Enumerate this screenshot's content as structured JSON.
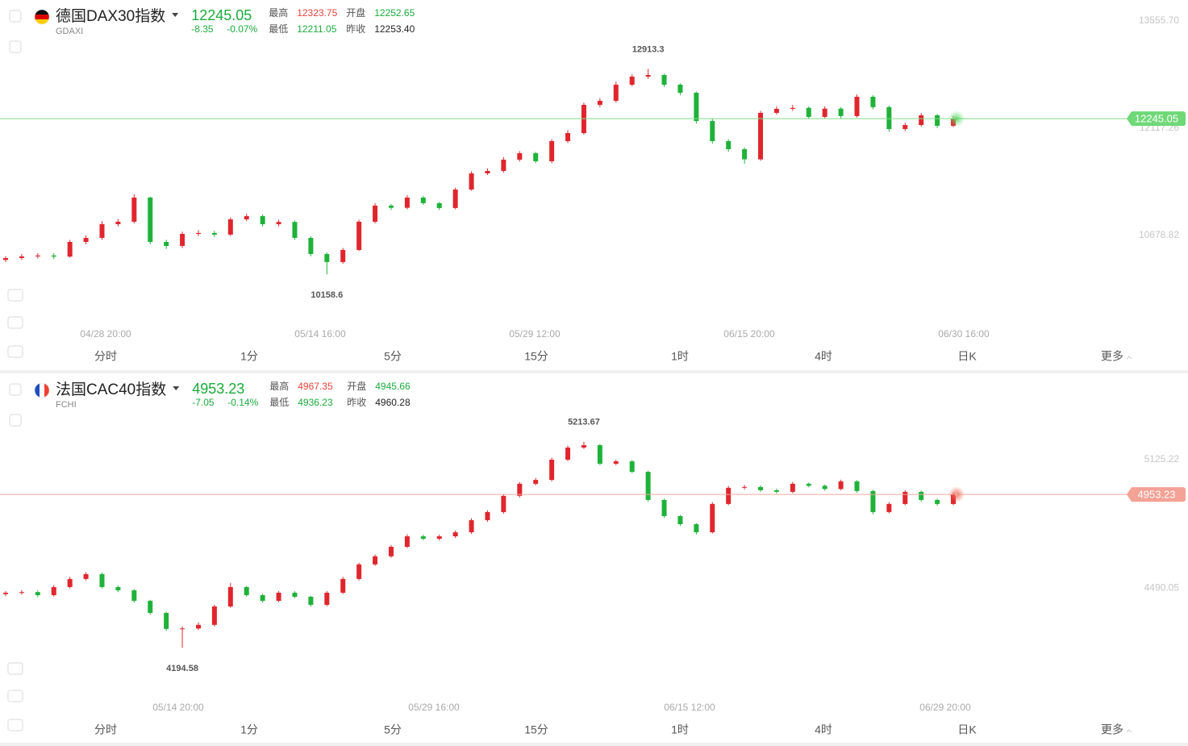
{
  "chart_data": [
    {
      "type": "candlestick",
      "title": "德国DAX30指数",
      "symbol": "GDAXI",
      "change": -8.35,
      "change_pct": "-0.07%",
      "stats": [
        {
          "label": "最高",
          "value": "12323.75",
          "color": "#e8413a"
        },
        {
          "label": "开盘",
          "value": "12252.65",
          "color": "#1aab3c"
        },
        {
          "label": "最低",
          "value": "12211.05",
          "color": "#1aab3c"
        },
        {
          "label": "昨收",
          "value": "12253.40",
          "color": "#222222"
        }
      ],
      "up_color": "#e0262d",
      "down_color": "#1fb23a",
      "price_line_color": "#7fdc86",
      "price_tag_color": "#6fd877",
      "ylim": [
        9510,
        13837
      ],
      "yticks": [
        {
          "value": 13555.7,
          "label": "13555.70"
        },
        12117.26,
        10678.82
      ],
      "xtick_labels": [
        "04/28 20:00",
        "05/14 16:00",
        "05/29 12:00",
        "06/15 20:00",
        "06/30 16:00"
      ],
      "periods": [
        "分时",
        "1分",
        "5分",
        "15分",
        "1时",
        "4时",
        "日K",
        "更多"
      ],
      "series": {
        "open": [
          10350,
          10376,
          10398,
          10410,
          10395,
          10592,
          10646,
          10830,
          10863,
          11187,
          10592,
          10538,
          10700,
          10712,
          10690,
          10895,
          10938,
          10830,
          10860,
          10646,
          10430,
          10322,
          10484,
          10863,
          11079,
          11050,
          11187,
          11112,
          11047,
          11295,
          11511,
          11544,
          11695,
          11782,
          11674,
          11944,
          12052,
          12431,
          12485,
          12701,
          12809,
          12831,
          12701,
          12593,
          12214,
          11944,
          11836,
          11700,
          12323,
          12377,
          12390,
          12269,
          12380,
          12280,
          12539,
          12400,
          12106,
          12160,
          12290,
          12150
        ],
        "high": [
          10400,
          10430,
          10440,
          10440,
          10620,
          10680,
          10870,
          10900,
          11230,
          11200,
          10620,
          10730,
          10750,
          10740,
          10920,
          10970,
          10960,
          10890,
          10880,
          10670,
          10450,
          10510,
          10890,
          11110,
          11100,
          11220,
          11210,
          11130,
          11320,
          11540,
          11580,
          11730,
          11810,
          11800,
          11970,
          12090,
          12460,
          12520,
          12740,
          12840,
          12913.3,
          12850,
          12720,
          12610,
          12240,
          11970,
          11860,
          12350,
          12410,
          12430,
          12410,
          12410,
          12400,
          12570,
          12560,
          12420,
          12190,
          12320,
          12310,
          12280
        ],
        "low": [
          10320,
          10350,
          10370,
          10360,
          10380,
          10560,
          10620,
          10800,
          10840,
          10560,
          10500,
          10510,
          10670,
          10660,
          10670,
          10870,
          10800,
          10800,
          10620,
          10400,
          10158.6,
          10300,
          10470,
          10840,
          11020,
          11030,
          11090,
          11020,
          11030,
          11280,
          11490,
          11520,
          11670,
          11650,
          11650,
          11920,
          12030,
          12400,
          12460,
          12680,
          12780,
          12670,
          12560,
          12180,
          11910,
          11800,
          11640,
          11680,
          12300,
          12350,
          12240,
          12250,
          12250,
          12260,
          12370,
          12070,
          12080,
          12140,
          12120,
          12130
        ],
        "close": [
          10376,
          10398,
          10410,
          10395,
          10592,
          10646,
          10830,
          10863,
          11187,
          10592,
          10538,
          10700,
          10712,
          10690,
          10895,
          10938,
          10830,
          10860,
          10646,
          10430,
          10322,
          10484,
          10863,
          11079,
          11050,
          11187,
          11112,
          11047,
          11295,
          11511,
          11544,
          11695,
          11782,
          11674,
          11944,
          12052,
          12431,
          12485,
          12701,
          12809,
          12831,
          12701,
          12593,
          12214,
          11944,
          11836,
          11700,
          12323,
          12377,
          12390,
          12269,
          12380,
          12280,
          12539,
          12400,
          12106,
          12160,
          12290,
          12150,
          12245.05
        ]
      }
    },
    {
      "type": "candlestick",
      "title": "法国CAC40指数",
      "symbol": "FCHI",
      "change": -7.05,
      "change_pct": "-0.14%",
      "stats": [
        {
          "label": "最高",
          "value": "4967.35",
          "color": "#e8413a"
        },
        {
          "label": "开盘",
          "value": "4945.66",
          "color": "#1aab3c"
        },
        {
          "label": "最低",
          "value": "4936.23",
          "color": "#1aab3c"
        },
        {
          "label": "昨收",
          "value": "4960.28",
          "color": "#222222"
        }
      ],
      "up_color": "#e0262d",
      "down_color": "#1fb23a",
      "price_line_color": "#f3a89d",
      "price_tag_color": "#f4a196",
      "ylim": [
        3956,
        5552
      ],
      "yticks": [
        5125.22,
        4490.05
      ],
      "xtick_labels": [
        "05/14 20:00",
        "05/29 16:00",
        "06/15 12:00",
        "06/29 20:00"
      ],
      "periods": [
        "分时",
        "1分",
        "5分",
        "15分",
        "1时",
        "4时",
        "日K",
        "更多"
      ],
      "series": {
        "open": [
          4460,
          4467,
          4470,
          4455,
          4495,
          4535,
          4559,
          4495,
          4479,
          4427,
          4367,
          4288,
          4290,
          4308,
          4399,
          4495,
          4455,
          4427,
          4467,
          4447,
          4407,
          4467,
          4535,
          4607,
          4647,
          4694,
          4746,
          4734,
          4746,
          4766,
          4826,
          4866,
          4946,
          5006,
          5025,
          5125,
          5185,
          5197,
          5105,
          5117,
          5065,
          4926,
          4846,
          4806,
          4766,
          4906,
          4986,
          4990,
          4974,
          4966,
          5006,
          4996,
          4980,
          5018,
          4970,
          4866,
          4906,
          4966,
          4926,
          4906
        ],
        "high": [
          4475,
          4480,
          4478,
          4505,
          4545,
          4568,
          4566,
          4502,
          4485,
          4432,
          4372,
          4300,
          4320,
          4408,
          4515,
          4500,
          4462,
          4475,
          4474,
          4452,
          4475,
          4545,
          4615,
          4656,
          4703,
          4756,
          4754,
          4755,
          4775,
          4835,
          4875,
          4955,
          5015,
          5035,
          5135,
          5195,
          5213.67,
          5203,
          5126,
          5124,
          5070,
          4932,
          4852,
          4812,
          4915,
          4995,
          5000,
          4998,
          4982,
          5015,
          5012,
          5002,
          5026,
          5024,
          4976,
          4915,
          4975,
          4972,
          4932,
          4962
        ],
        "low": [
          4450,
          4458,
          4445,
          4448,
          4488,
          4528,
          4488,
          4470,
          4418,
          4358,
          4278,
          4194.58,
          4282,
          4300,
          4392,
          4448,
          4418,
          4420,
          4440,
          4398,
          4400,
          4460,
          4528,
          4600,
          4640,
          4688,
          4726,
          4725,
          4738,
          4758,
          4818,
          4858,
          4938,
          4998,
          5018,
          5118,
          5178,
          5098,
          5098,
          5058,
          4918,
          4838,
          4798,
          4755,
          4760,
          4900,
          4978,
          4966,
          4958,
          4960,
          4988,
          4972,
          4974,
          4962,
          4855,
          4860,
          4900,
          4918,
          4898,
          4900
        ],
        "close": [
          4467,
          4470,
          4455,
          4495,
          4535,
          4559,
          4495,
          4479,
          4427,
          4367,
          4288,
          4290,
          4308,
          4399,
          4495,
          4455,
          4427,
          4467,
          4447,
          4407,
          4467,
          4535,
          4607,
          4647,
          4694,
          4746,
          4734,
          4746,
          4766,
          4826,
          4866,
          4946,
          5006,
          5025,
          5125,
          5185,
          5197,
          5105,
          5117,
          5065,
          4926,
          4846,
          4806,
          4766,
          4906,
          4986,
          4990,
          4974,
          4966,
          5006,
          4996,
          4980,
          5018,
          4970,
          4866,
          4906,
          4966,
          4926,
          4906,
          4953.23
        ]
      }
    }
  ]
}
